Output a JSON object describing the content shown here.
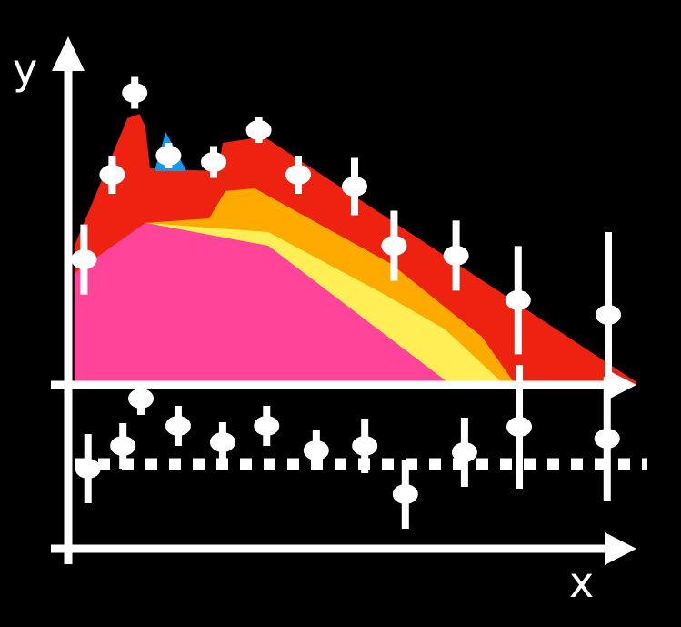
{
  "chart_data": {
    "type": "area",
    "xlabel": "x",
    "ylabel": "y",
    "xlim": [
      0,
      10
    ],
    "ylim": [
      0,
      10
    ],
    "ratio_ylim": [
      0.1,
      2.1
    ],
    "ratio_reference": 1,
    "grid": false,
    "colors": {
      "background": "#000000",
      "axes": "#ffffff",
      "markers": "#ffffff"
    },
    "layers": [
      {
        "color": "#ee2211",
        "edge": [
          [
            0.03,
            0
          ],
          [
            0.03,
            4.37
          ],
          [
            0.97,
            8.37
          ],
          [
            1.18,
            8.51
          ],
          [
            1.29,
            8.11
          ],
          [
            1.37,
            6.8
          ],
          [
            2.58,
            6.71
          ],
          [
            2.66,
            7.6
          ],
          [
            3.39,
            7.8
          ],
          [
            10,
            0.09
          ],
          [
            10,
            0
          ]
        ]
      },
      {
        "color": "#ffaa00",
        "edge": [
          [
            1.29,
            0
          ],
          [
            1.29,
            5.09
          ],
          [
            2.42,
            5.23
          ],
          [
            2.71,
            6.09
          ],
          [
            3.23,
            6.17
          ],
          [
            5.65,
            3.8
          ],
          [
            7.26,
            1.51
          ],
          [
            7.82,
            0.09
          ],
          [
            7.82,
            0
          ]
        ]
      },
      {
        "color": "#ffee55",
        "edge": [
          [
            1.29,
            0
          ],
          [
            1.29,
            5.09
          ],
          [
            3.47,
            4.8
          ],
          [
            5.48,
            2.89
          ],
          [
            6.61,
            1.74
          ],
          [
            7.66,
            0
          ]
        ]
      },
      {
        "color": "#ff4499",
        "edge": [
          [
            0.03,
            0
          ],
          [
            0.03,
            3.51
          ],
          [
            1.29,
            5.09
          ],
          [
            3.47,
            4.37
          ],
          [
            6.61,
            0.14
          ],
          [
            6.61,
            0
          ]
        ]
      },
      {
        "color": "#1199ee",
        "edge": [
          [
            1.45,
            6.71
          ],
          [
            1.65,
            7.94
          ],
          [
            2.02,
            6.71
          ]
        ]
      }
    ],
    "points": {
      "x": [
        0.2,
        0.7,
        1.1,
        1.7,
        2.5,
        3.3,
        4.0,
        5.0,
        5.7,
        6.8,
        7.9,
        9.5
      ],
      "y": [
        3.94,
        6.6,
        9.17,
        7.2,
        7.0,
        8.0,
        6.6,
        6.23,
        4.37,
        4.06,
        2.66,
        2.2
      ],
      "err": [
        1.1,
        0.6,
        0.5,
        0.4,
        0.5,
        0.4,
        0.6,
        0.9,
        1.1,
        1.1,
        1.7,
        2.6
      ]
    },
    "ratio_points": {
      "x": [
        0.27,
        0.89,
        1.21,
        1.87,
        2.66,
        3.44,
        4.32,
        5.18,
        5.9,
        6.95,
        7.92,
        9.48
      ],
      "y": [
        0.95,
        1.2,
        1.72,
        1.42,
        1.24,
        1.42,
        1.15,
        1.2,
        0.67,
        1.13,
        1.41,
        1.28
      ],
      "err": [
        0.38,
        0.25,
        0.18,
        0.22,
        0.22,
        0.22,
        0.22,
        0.3,
        0.38,
        0.38,
        0.68,
        0.68
      ]
    }
  }
}
